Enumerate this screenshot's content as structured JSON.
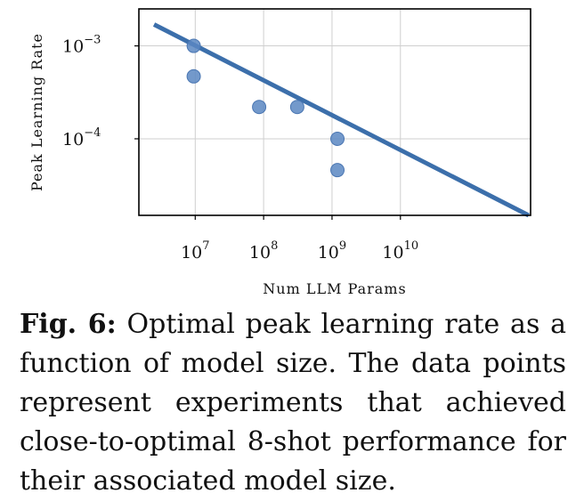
{
  "chart_data": {
    "type": "scatter",
    "xlabel": "Num LLM Params",
    "ylabel": "Peak Learning Rate",
    "x_scale": "log",
    "y_scale": "log",
    "xlim": [
      1500000,
      800000000000
    ],
    "ylim": [
      1.5e-05,
      0.0025
    ],
    "x_ticks": [
      {
        "value": 10000000,
        "base": "10",
        "exp": "7"
      },
      {
        "value": 100000000,
        "base": "10",
        "exp": "8"
      },
      {
        "value": 1000000000,
        "base": "10",
        "exp": "9"
      },
      {
        "value": 10000000000,
        "base": "10",
        "exp": "10"
      }
    ],
    "y_ticks": [
      {
        "value": 0.001,
        "base": "10",
        "exp": "−3"
      },
      {
        "value": 0.0001,
        "base": "10",
        "exp": "−4"
      }
    ],
    "grid": true,
    "points": [
      {
        "x": 9500000,
        "y": 0.001
      },
      {
        "x": 9500000,
        "y": 0.00047
      },
      {
        "x": 86000000,
        "y": 0.00022
      },
      {
        "x": 310000000,
        "y": 0.00022
      },
      {
        "x": 1200000000,
        "y": 0.0001
      },
      {
        "x": 1200000000,
        "y": 4.6e-05
      }
    ],
    "fit_line": [
      {
        "x": 2500000,
        "y": 0.0017
      },
      {
        "x": 750000000000,
        "y": 1.5e-05
      }
    ],
    "colors": {
      "point_fill": "#5a87c2",
      "point_stroke": "#4a76b2",
      "fit_line": "#3c6fab",
      "grid": "#cfcfcf",
      "frame": "#000000"
    }
  },
  "caption": {
    "label": "Fig. 6:",
    "text": " Optimal peak learning rate as a function of model size. The data points represent experiments that achieved close-to-optimal 8-shot performance for their associated model size."
  }
}
